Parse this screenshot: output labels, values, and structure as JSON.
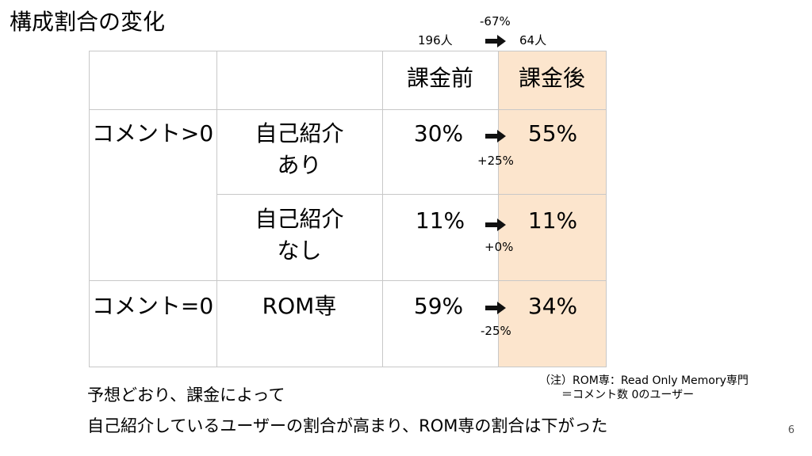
{
  "title": "構成割合の変化",
  "header_summary": {
    "before_count": "196人",
    "change": "-67%",
    "after_count": "64人"
  },
  "table": {
    "headers": [
      "",
      "",
      "課金前",
      "課金後"
    ],
    "rows": [
      {
        "group": "コメント>0",
        "label_line1": "自己紹介",
        "label_line2": "あり",
        "before": "30%",
        "after": "55%",
        "diff": "+25%"
      },
      {
        "group": "",
        "label_line1": "自己紹介",
        "label_line2": "なし",
        "before": "11%",
        "after": "11%",
        "diff": "+0%"
      },
      {
        "group": "コメント=0",
        "label_line1": "ROM専",
        "label_line2": "",
        "before": "59%",
        "after": "34%",
        "diff": "-25%"
      }
    ]
  },
  "note": {
    "line1": "（注）ROM専：Read Only Memory専門",
    "line2": "＝コメント数 0のユーザー"
  },
  "conclusion": {
    "line1": "予想どおり、課金によって",
    "line2": "自己紹介しているユーザーの割合が高まり、ROM専の割合は下がった"
  },
  "page_number": "6",
  "colors": {
    "highlight": "#fce5cd",
    "grid": "#c8c8c8"
  },
  "icons": [
    "right-arrow-icon"
  ]
}
